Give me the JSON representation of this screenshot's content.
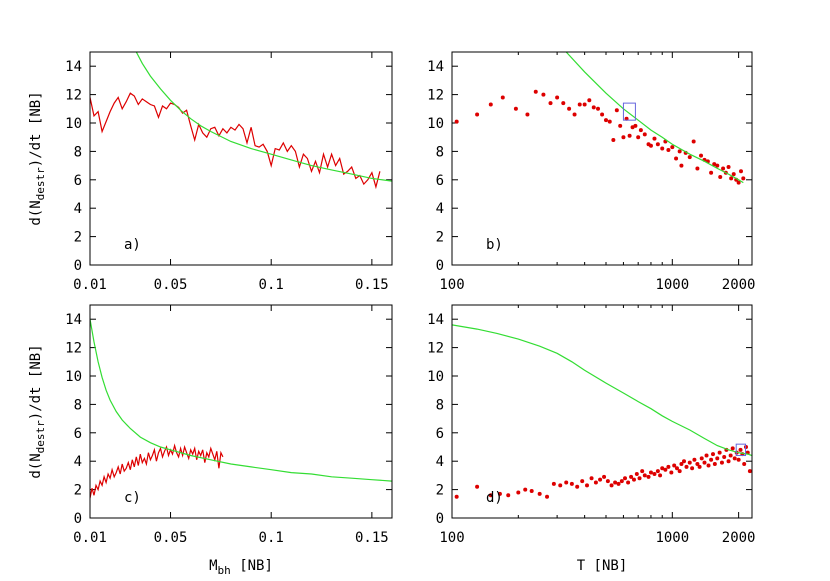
{
  "chart_data": [
    {
      "panel_id": "a",
      "type": "line",
      "panel_label": "a)",
      "ylabel": "d(N",
      "ylabel_sub": "destr",
      "ylabel_tail": ")/dt  [NB]",
      "xlim": [
        0.01,
        0.16
      ],
      "ylim": [
        0,
        15
      ],
      "xscale": "linear",
      "xticks": [
        0.01,
        0.05,
        0.1,
        0.15
      ],
      "xtick_labels": [
        "0.01",
        "0.05",
        "0.1",
        "0.15"
      ],
      "yticks": [
        0,
        2,
        4,
        6,
        8,
        10,
        12,
        14
      ],
      "ytick_labels": [
        "0",
        "2",
        "4",
        "6",
        "8",
        "10",
        "12",
        "14"
      ],
      "series": [
        {
          "style": "line",
          "color": "#dd0000",
          "x": [
            0.01,
            0.012,
            0.014,
            0.016,
            0.018,
            0.02,
            0.022,
            0.024,
            0.026,
            0.028,
            0.03,
            0.032,
            0.034,
            0.036,
            0.038,
            0.04,
            0.042,
            0.044,
            0.046,
            0.048,
            0.05,
            0.052,
            0.054,
            0.056,
            0.058,
            0.06,
            0.062,
            0.064,
            0.066,
            0.068,
            0.07,
            0.072,
            0.074,
            0.076,
            0.078,
            0.08,
            0.082,
            0.084,
            0.086,
            0.088,
            0.09,
            0.092,
            0.094,
            0.096,
            0.098,
            0.1,
            0.102,
            0.104,
            0.106,
            0.108,
            0.11,
            0.112,
            0.114,
            0.116,
            0.118,
            0.12,
            0.122,
            0.124,
            0.126,
            0.128,
            0.13,
            0.132,
            0.134,
            0.136,
            0.138,
            0.14,
            0.142,
            0.144,
            0.146,
            0.148,
            0.15,
            0.152,
            0.154
          ],
          "y": [
            11.8,
            10.5,
            10.8,
            9.4,
            10.1,
            10.8,
            11.4,
            11.8,
            11.0,
            11.5,
            12.1,
            11.9,
            11.3,
            11.7,
            11.5,
            11.3,
            11.2,
            10.4,
            11.2,
            11.0,
            11.4,
            11.3,
            11.1,
            10.7,
            10.9,
            9.8,
            8.8,
            9.9,
            9.3,
            9.0,
            9.6,
            9.7,
            9.1,
            9.6,
            9.3,
            9.7,
            9.5,
            9.9,
            9.6,
            8.6,
            9.7,
            8.4,
            8.3,
            8.5,
            8.0,
            7.0,
            8.2,
            8.1,
            8.6,
            8.0,
            8.4,
            8.0,
            6.9,
            7.8,
            7.5,
            6.6,
            7.3,
            6.5,
            7.8,
            6.9,
            7.8,
            7.0,
            7.5,
            6.4,
            6.6,
            6.9,
            6.1,
            6.3,
            5.7,
            6.0,
            6.5,
            5.5,
            6.6
          ]
        },
        {
          "style": "line",
          "color": "#33dd33",
          "x": [
            0.033,
            0.036,
            0.04,
            0.045,
            0.05,
            0.055,
            0.06,
            0.065,
            0.07,
            0.08,
            0.09,
            0.1,
            0.11,
            0.12,
            0.13,
            0.14,
            0.15,
            0.16
          ],
          "y": [
            15.0,
            14.2,
            13.3,
            12.4,
            11.6,
            10.9,
            10.3,
            9.8,
            9.4,
            8.7,
            8.2,
            7.8,
            7.4,
            7.0,
            6.7,
            6.4,
            6.1,
            5.9
          ]
        }
      ]
    },
    {
      "panel_id": "b",
      "type": "scatter",
      "panel_label": "b)",
      "xlim": [
        100,
        2300
      ],
      "ylim": [
        0,
        15
      ],
      "xscale": "log",
      "xticks": [
        100,
        1000,
        2000
      ],
      "xtick_labels": [
        "100",
        "1000",
        "2000"
      ],
      "yticks": [
        0,
        2,
        4,
        6,
        8,
        10,
        12,
        14
      ],
      "ytick_labels": [
        "0",
        "2",
        "4",
        "6",
        "8",
        "10",
        "12",
        "14"
      ],
      "series": [
        {
          "style": "points",
          "color": "#dd0000",
          "x": [
            105,
            130,
            150,
            170,
            195,
            220,
            240,
            260,
            280,
            300,
            320,
            340,
            360,
            380,
            400,
            420,
            440,
            460,
            480,
            500,
            520,
            540,
            560,
            580,
            600,
            620,
            640,
            660,
            680,
            700,
            720,
            750,
            780,
            800,
            830,
            860,
            900,
            930,
            960,
            1000,
            1040,
            1080,
            1100,
            1150,
            1200,
            1250,
            1300,
            1350,
            1400,
            1450,
            1500,
            1550,
            1600,
            1650,
            1700,
            1750,
            1800,
            1850,
            1900,
            1950,
            2000,
            2050,
            2100
          ],
          "y": [
            10.1,
            10.6,
            11.3,
            11.8,
            11.0,
            10.6,
            12.2,
            12.0,
            11.4,
            11.8,
            11.4,
            11.0,
            10.6,
            11.3,
            11.3,
            11.6,
            11.1,
            11.0,
            10.6,
            10.2,
            10.1,
            8.8,
            10.9,
            9.8,
            9.0,
            10.3,
            9.1,
            9.7,
            9.8,
            9.0,
            9.5,
            9.2,
            8.5,
            8.4,
            8.9,
            8.5,
            8.2,
            8.7,
            8.1,
            8.3,
            7.5,
            8.0,
            7.0,
            7.9,
            7.6,
            8.7,
            6.8,
            7.7,
            7.4,
            7.3,
            6.5,
            7.1,
            7.0,
            6.2,
            6.8,
            6.5,
            6.9,
            6.1,
            6.4,
            6.0,
            5.8,
            6.6,
            6.1
          ]
        },
        {
          "style": "line",
          "color": "#33dd33",
          "x": [
            330,
            400,
            500,
            600,
            700,
            800,
            900,
            1000,
            1200,
            1400,
            1600,
            1800,
            2000,
            2100
          ],
          "y": [
            15.0,
            13.6,
            12.1,
            11.0,
            10.2,
            9.5,
            9.0,
            8.5,
            7.8,
            7.3,
            6.8,
            6.4,
            6.0,
            5.8
          ]
        },
        {
          "style": "box",
          "color": "#6666dd",
          "x": [
            600,
            680
          ],
          "y": [
            10.2,
            11.4
          ]
        }
      ]
    },
    {
      "panel_id": "c",
      "type": "line",
      "panel_label": "c)",
      "ylabel": "d(N",
      "ylabel_sub": "destr",
      "ylabel_tail": ")/dt  [NB]",
      "xlabel": "M",
      "xlabel_sub": "bh",
      "xlabel_tail": " [NB]",
      "xlim": [
        0.01,
        0.16
      ],
      "ylim": [
        0,
        15
      ],
      "xscale": "linear",
      "xticks": [
        0.01,
        0.05,
        0.1,
        0.15
      ],
      "xtick_labels": [
        "0.01",
        "0.05",
        "0.1",
        "0.15"
      ],
      "yticks": [
        0,
        2,
        4,
        6,
        8,
        10,
        12,
        14
      ],
      "ytick_labels": [
        "0",
        "2",
        "4",
        "6",
        "8",
        "10",
        "12",
        "14"
      ],
      "series": [
        {
          "style": "line",
          "color": "#dd0000",
          "x": [
            0.01,
            0.011,
            0.012,
            0.013,
            0.014,
            0.015,
            0.016,
            0.017,
            0.018,
            0.019,
            0.02,
            0.021,
            0.022,
            0.023,
            0.024,
            0.025,
            0.026,
            0.027,
            0.028,
            0.029,
            0.03,
            0.031,
            0.032,
            0.033,
            0.034,
            0.035,
            0.036,
            0.037,
            0.038,
            0.039,
            0.04,
            0.041,
            0.042,
            0.043,
            0.044,
            0.045,
            0.046,
            0.047,
            0.048,
            0.049,
            0.05,
            0.051,
            0.052,
            0.053,
            0.054,
            0.055,
            0.056,
            0.057,
            0.058,
            0.059,
            0.06,
            0.061,
            0.062,
            0.063,
            0.064,
            0.065,
            0.066,
            0.067,
            0.068,
            0.069,
            0.07,
            0.071,
            0.072,
            0.073,
            0.074,
            0.075,
            0.076
          ],
          "y": [
            1.4,
            2.1,
            1.6,
            2.3,
            2.0,
            2.6,
            2.3,
            2.9,
            2.5,
            3.1,
            2.8,
            3.4,
            2.9,
            3.2,
            3.6,
            3.1,
            3.8,
            3.3,
            3.5,
            3.9,
            3.4,
            4.1,
            3.6,
            4.3,
            3.7,
            4.5,
            3.9,
            4.2,
            3.8,
            4.6,
            4.1,
            4.4,
            4.8,
            4.0,
            4.6,
            4.9,
            4.3,
            4.7,
            5.0,
            4.4,
            4.8,
            4.5,
            5.1,
            4.6,
            4.3,
            4.9,
            4.4,
            5.0,
            4.6,
            4.2,
            4.8,
            4.5,
            4.9,
            4.1,
            4.7,
            4.4,
            4.8,
            3.9,
            4.6,
            4.3,
            4.9,
            4.5,
            4.1,
            4.7,
            3.5,
            4.6,
            4.3
          ]
        },
        {
          "style": "line",
          "color": "#33dd33",
          "x": [
            0.01,
            0.012,
            0.014,
            0.016,
            0.018,
            0.02,
            0.023,
            0.026,
            0.03,
            0.035,
            0.04,
            0.045,
            0.05,
            0.06,
            0.07,
            0.08,
            0.09,
            0.1,
            0.11,
            0.12,
            0.13,
            0.14,
            0.15,
            0.16
          ],
          "y": [
            14.0,
            12.4,
            11.0,
            9.9,
            9.0,
            8.3,
            7.5,
            6.9,
            6.3,
            5.7,
            5.3,
            5.0,
            4.8,
            4.4,
            4.1,
            3.8,
            3.6,
            3.4,
            3.2,
            3.1,
            2.9,
            2.8,
            2.7,
            2.6
          ]
        }
      ]
    },
    {
      "panel_id": "d",
      "type": "scatter",
      "panel_label": "d)",
      "xlabel": "T [NB]",
      "xlim": [
        100,
        2300
      ],
      "ylim": [
        0,
        15
      ],
      "xscale": "log",
      "xticks": [
        100,
        1000,
        2000
      ],
      "xtick_labels": [
        "100",
        "1000",
        "2000"
      ],
      "yticks": [
        0,
        2,
        4,
        6,
        8,
        10,
        12,
        14
      ],
      "ytick_labels": [
        "0",
        "2",
        "4",
        "6",
        "8",
        "10",
        "12",
        "14"
      ],
      "series": [
        {
          "style": "points",
          "color": "#dd0000",
          "x": [
            105,
            130,
            150,
            165,
            180,
            200,
            215,
            230,
            250,
            270,
            290,
            310,
            330,
            350,
            370,
            390,
            410,
            430,
            450,
            470,
            490,
            510,
            530,
            550,
            570,
            590,
            610,
            630,
            650,
            670,
            690,
            710,
            730,
            750,
            780,
            800,
            830,
            860,
            880,
            900,
            930,
            960,
            990,
            1020,
            1050,
            1080,
            1100,
            1130,
            1160,
            1200,
            1230,
            1260,
            1300,
            1330,
            1360,
            1400,
            1430,
            1460,
            1500,
            1530,
            1560,
            1600,
            1640,
            1680,
            1720,
            1760,
            1800,
            1840,
            1880,
            1920,
            1960,
            2000,
            2040,
            2080,
            2120,
            2160,
            2200,
            2250
          ],
          "y": [
            1.5,
            2.2,
            1.6,
            1.7,
            1.6,
            1.8,
            2.0,
            1.9,
            1.7,
            1.5,
            2.4,
            2.3,
            2.5,
            2.4,
            2.2,
            2.6,
            2.3,
            2.8,
            2.5,
            2.7,
            2.9,
            2.6,
            2.3,
            2.5,
            2.4,
            2.6,
            2.8,
            2.5,
            2.9,
            2.7,
            3.1,
            2.8,
            3.3,
            3.0,
            2.9,
            3.2,
            3.1,
            3.3,
            3.0,
            3.5,
            3.4,
            3.6,
            3.2,
            3.7,
            3.5,
            3.3,
            3.8,
            4.0,
            3.6,
            3.9,
            3.5,
            4.1,
            3.8,
            3.6,
            4.2,
            3.9,
            4.4,
            3.7,
            4.1,
            4.5,
            3.8,
            4.2,
            4.6,
            3.9,
            4.3,
            4.8,
            4.0,
            4.4,
            4.9,
            4.2,
            4.6,
            4.1,
            4.8,
            4.5,
            3.8,
            5.0,
            4.6,
            3.3
          ]
        },
        {
          "style": "line",
          "color": "#33dd33",
          "x": [
            100,
            130,
            160,
            200,
            250,
            300,
            350,
            400,
            500,
            600,
            700,
            800,
            900,
            1000,
            1200,
            1400,
            1600,
            1800,
            2000,
            2200,
            2300
          ],
          "y": [
            13.6,
            13.3,
            13.0,
            12.6,
            12.1,
            11.6,
            11.0,
            10.4,
            9.5,
            8.8,
            8.2,
            7.7,
            7.2,
            6.8,
            6.2,
            5.6,
            5.1,
            4.8,
            4.6,
            4.5,
            4.4
          ]
        },
        {
          "style": "box",
          "color": "#6666dd",
          "x": [
            1950,
            2150
          ],
          "y": [
            4.4,
            5.2
          ]
        }
      ]
    }
  ]
}
